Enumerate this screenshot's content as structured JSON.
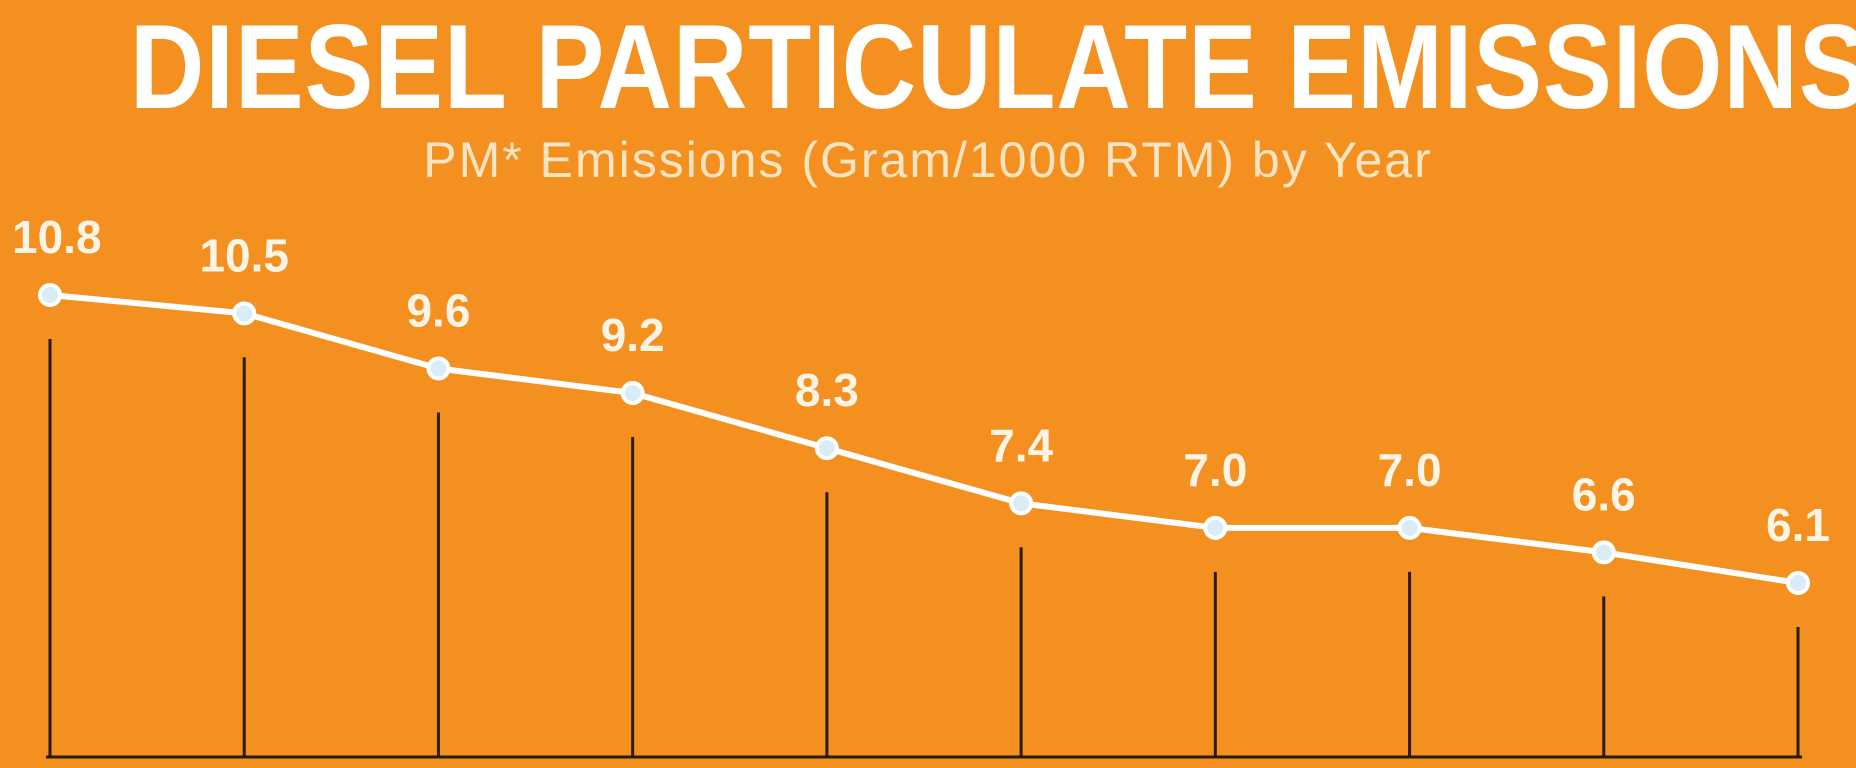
{
  "chart_data": {
    "type": "line",
    "title": "DIESEL PARTICULATE EMISSIONS",
    "subtitle": "PM* Emissions (Gram/1000 RTM) by Year",
    "xlabel": "",
    "ylabel": "",
    "ylim": [
      0,
      12
    ],
    "grid": false,
    "series": [
      {
        "values": [
          10.8,
          10.5,
          9.6,
          9.2,
          8.3,
          7.4,
          7.0,
          7.0,
          6.6,
          6.1
        ]
      }
    ],
    "data_labels": [
      "10.8",
      "10.5",
      "9.6",
      "9.2",
      "8.3",
      "7.4",
      "7.0",
      "7.0",
      "6.6",
      "6.1"
    ]
  },
  "colors": {
    "background": "#f3901f",
    "line": "#ffffff",
    "marker": "#d9ecf7",
    "drop_line": "#2a1a0c",
    "label": "#fdf4e6",
    "title": "#ffffff"
  }
}
